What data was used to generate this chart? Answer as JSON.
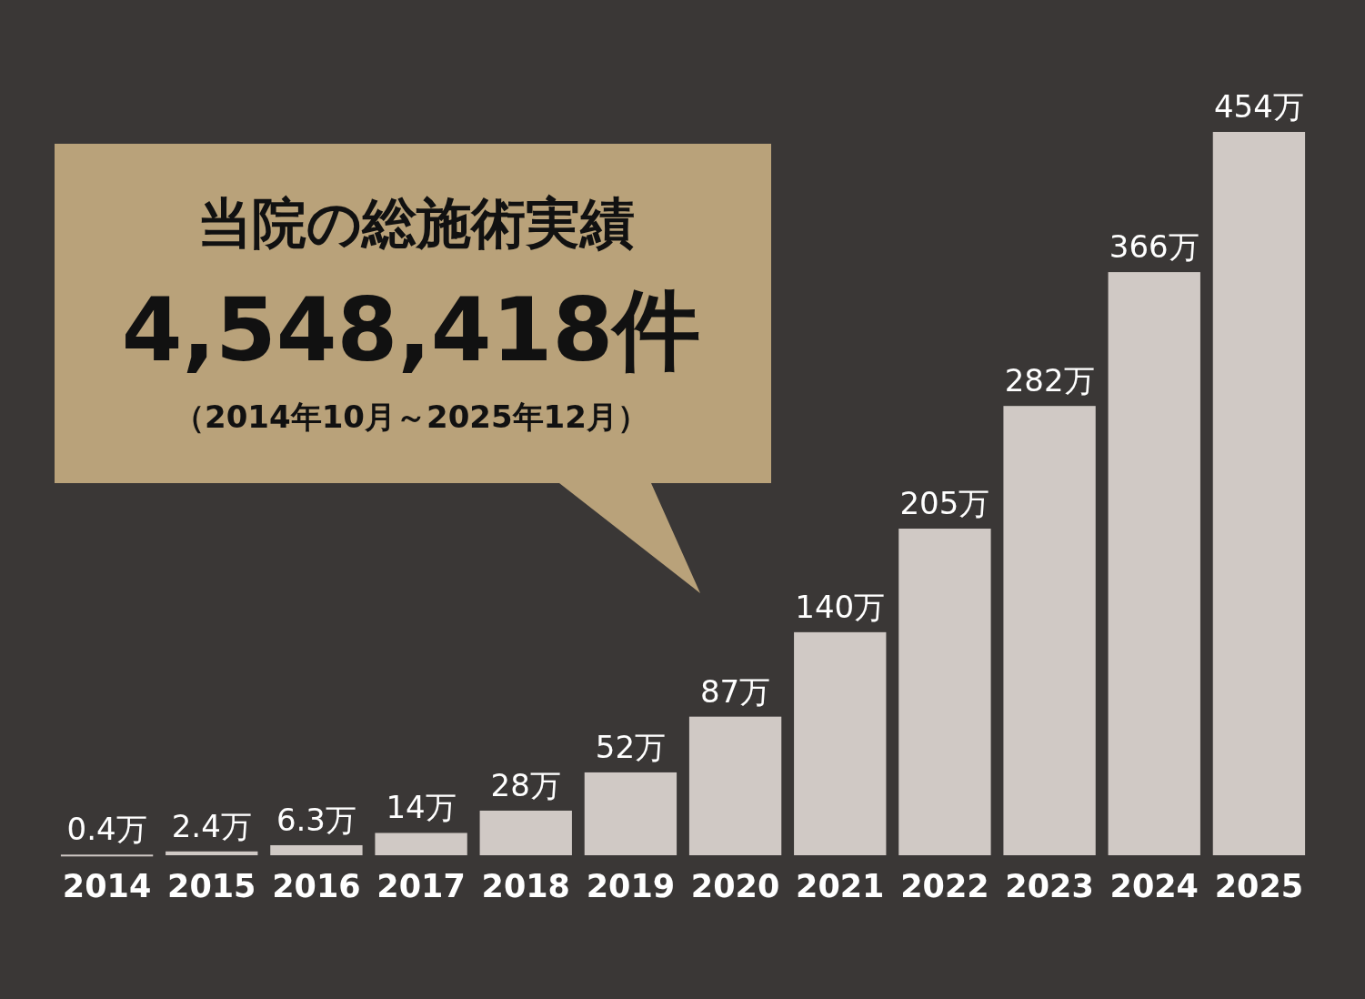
{
  "chart_data": {
    "type": "bar",
    "title": "当院の総施術実績",
    "subtitle": "4,548,418件",
    "annotations": [
      "（2014年10月～2025年12月）"
    ],
    "categories": [
      "2014",
      "2015",
      "2016",
      "2017",
      "2018",
      "2019",
      "2020",
      "2021",
      "2022",
      "2023",
      "2024",
      "2025"
    ],
    "values": [
      0.4,
      2.4,
      6.3,
      14,
      28,
      52,
      87,
      140,
      205,
      282,
      366,
      454
    ],
    "value_labels": [
      "0.4万",
      "2.4万",
      "6.3万",
      "14万",
      "28万",
      "52万",
      "87万",
      "140万",
      "205万",
      "282万",
      "366万",
      "454万"
    ],
    "color": "#d0c9c5"
  }
}
